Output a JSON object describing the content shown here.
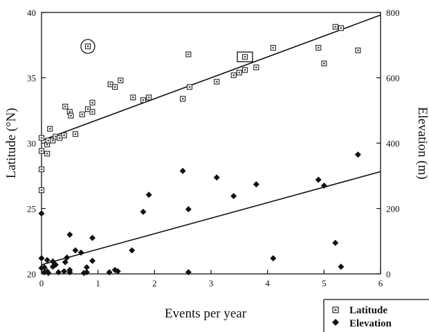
{
  "chart_data": {
    "type": "scatter",
    "xlabel": "Events per year",
    "ylabel_left": "Latitude (°N)",
    "ylabel_right": "Elevation (m)",
    "xlim": [
      0,
      6
    ],
    "ylim_left": [
      20,
      40
    ],
    "ylim_right": [
      0,
      800
    ],
    "x_ticks": [
      "0",
      "1",
      "2",
      "3",
      "4",
      "5",
      "6"
    ],
    "y_left_ticks": [
      "20",
      "25",
      "30",
      "35",
      "40"
    ],
    "y_right_ticks": [
      "0",
      "200",
      "400",
      "600",
      "800"
    ],
    "grid": false,
    "legend_position": "bottom-right",
    "series": [
      {
        "name": "Latitude",
        "axis": "left",
        "marker": "open-square",
        "points": [
          [
            0.0,
            30.4
          ],
          [
            0.0,
            29.4
          ],
          [
            0.0,
            28.0
          ],
          [
            0.0,
            26.4
          ],
          [
            0.1,
            29.2
          ],
          [
            0.1,
            29.9
          ],
          [
            0.12,
            30.2
          ],
          [
            0.15,
            31.1
          ],
          [
            0.2,
            30.2
          ],
          [
            0.25,
            30.5
          ],
          [
            0.32,
            30.4
          ],
          [
            0.4,
            30.6
          ],
          [
            0.42,
            32.8
          ],
          [
            0.5,
            32.4
          ],
          [
            0.52,
            32.1
          ],
          [
            0.6,
            30.7
          ],
          [
            0.72,
            32.2
          ],
          [
            0.82,
            37.4
          ],
          [
            0.82,
            32.6
          ],
          [
            0.9,
            32.4
          ],
          [
            0.9,
            33.1
          ],
          [
            1.22,
            34.5
          ],
          [
            1.3,
            34.3
          ],
          [
            1.4,
            34.8
          ],
          [
            1.62,
            33.5
          ],
          [
            1.8,
            33.3
          ],
          [
            1.9,
            33.5
          ],
          [
            2.5,
            33.4
          ],
          [
            2.6,
            36.8
          ],
          [
            2.62,
            34.3
          ],
          [
            3.1,
            34.7
          ],
          [
            3.4,
            35.2
          ],
          [
            3.5,
            35.4
          ],
          [
            3.6,
            35.6
          ],
          [
            3.6,
            36.6
          ],
          [
            3.8,
            35.8
          ],
          [
            4.1,
            37.3
          ],
          [
            4.9,
            37.3
          ],
          [
            5.0,
            36.1
          ],
          [
            5.2,
            38.9
          ],
          [
            5.3,
            38.8
          ],
          [
            5.6,
            37.1
          ]
        ],
        "fit": [
          [
            0,
            30.2
          ],
          [
            6,
            39.8
          ]
        ]
      },
      {
        "name": "Elevation",
        "axis": "right",
        "marker": "filled-diamond",
        "points": [
          [
            0.0,
            185
          ],
          [
            0.0,
            48
          ],
          [
            0.0,
            18
          ],
          [
            0.05,
            5
          ],
          [
            0.05,
            20
          ],
          [
            0.1,
            42
          ],
          [
            0.1,
            8
          ],
          [
            0.12,
            3
          ],
          [
            0.2,
            38
          ],
          [
            0.2,
            22
          ],
          [
            0.25,
            28
          ],
          [
            0.3,
            5
          ],
          [
            0.4,
            8
          ],
          [
            0.42,
            36
          ],
          [
            0.45,
            50
          ],
          [
            0.5,
            5
          ],
          [
            0.5,
            12
          ],
          [
            0.5,
            120
          ],
          [
            0.6,
            72
          ],
          [
            0.7,
            65
          ],
          [
            0.75,
            3
          ],
          [
            0.8,
            20
          ],
          [
            0.8,
            5
          ],
          [
            0.9,
            40
          ],
          [
            0.9,
            110
          ],
          [
            1.2,
            5
          ],
          [
            1.3,
            12
          ],
          [
            1.35,
            8
          ],
          [
            1.6,
            72
          ],
          [
            1.8,
            190
          ],
          [
            1.9,
            242
          ],
          [
            2.5,
            315
          ],
          [
            2.6,
            198
          ],
          [
            2.6,
            5
          ],
          [
            3.1,
            295
          ],
          [
            3.4,
            238
          ],
          [
            3.8,
            274
          ],
          [
            4.1,
            48
          ],
          [
            4.9,
            288
          ],
          [
            5.0,
            270
          ],
          [
            5.2,
            95
          ],
          [
            5.3,
            22
          ],
          [
            5.6,
            365
          ]
        ],
        "fit": [
          [
            0,
            28
          ],
          [
            6,
            313
          ]
        ]
      }
    ],
    "annotations": [
      {
        "type": "circle",
        "series": "Latitude",
        "point": [
          0.82,
          37.4
        ]
      },
      {
        "type": "rectangle",
        "series": "Elevation",
        "point": [
          3.6,
          36.6
        ]
      }
    ]
  }
}
